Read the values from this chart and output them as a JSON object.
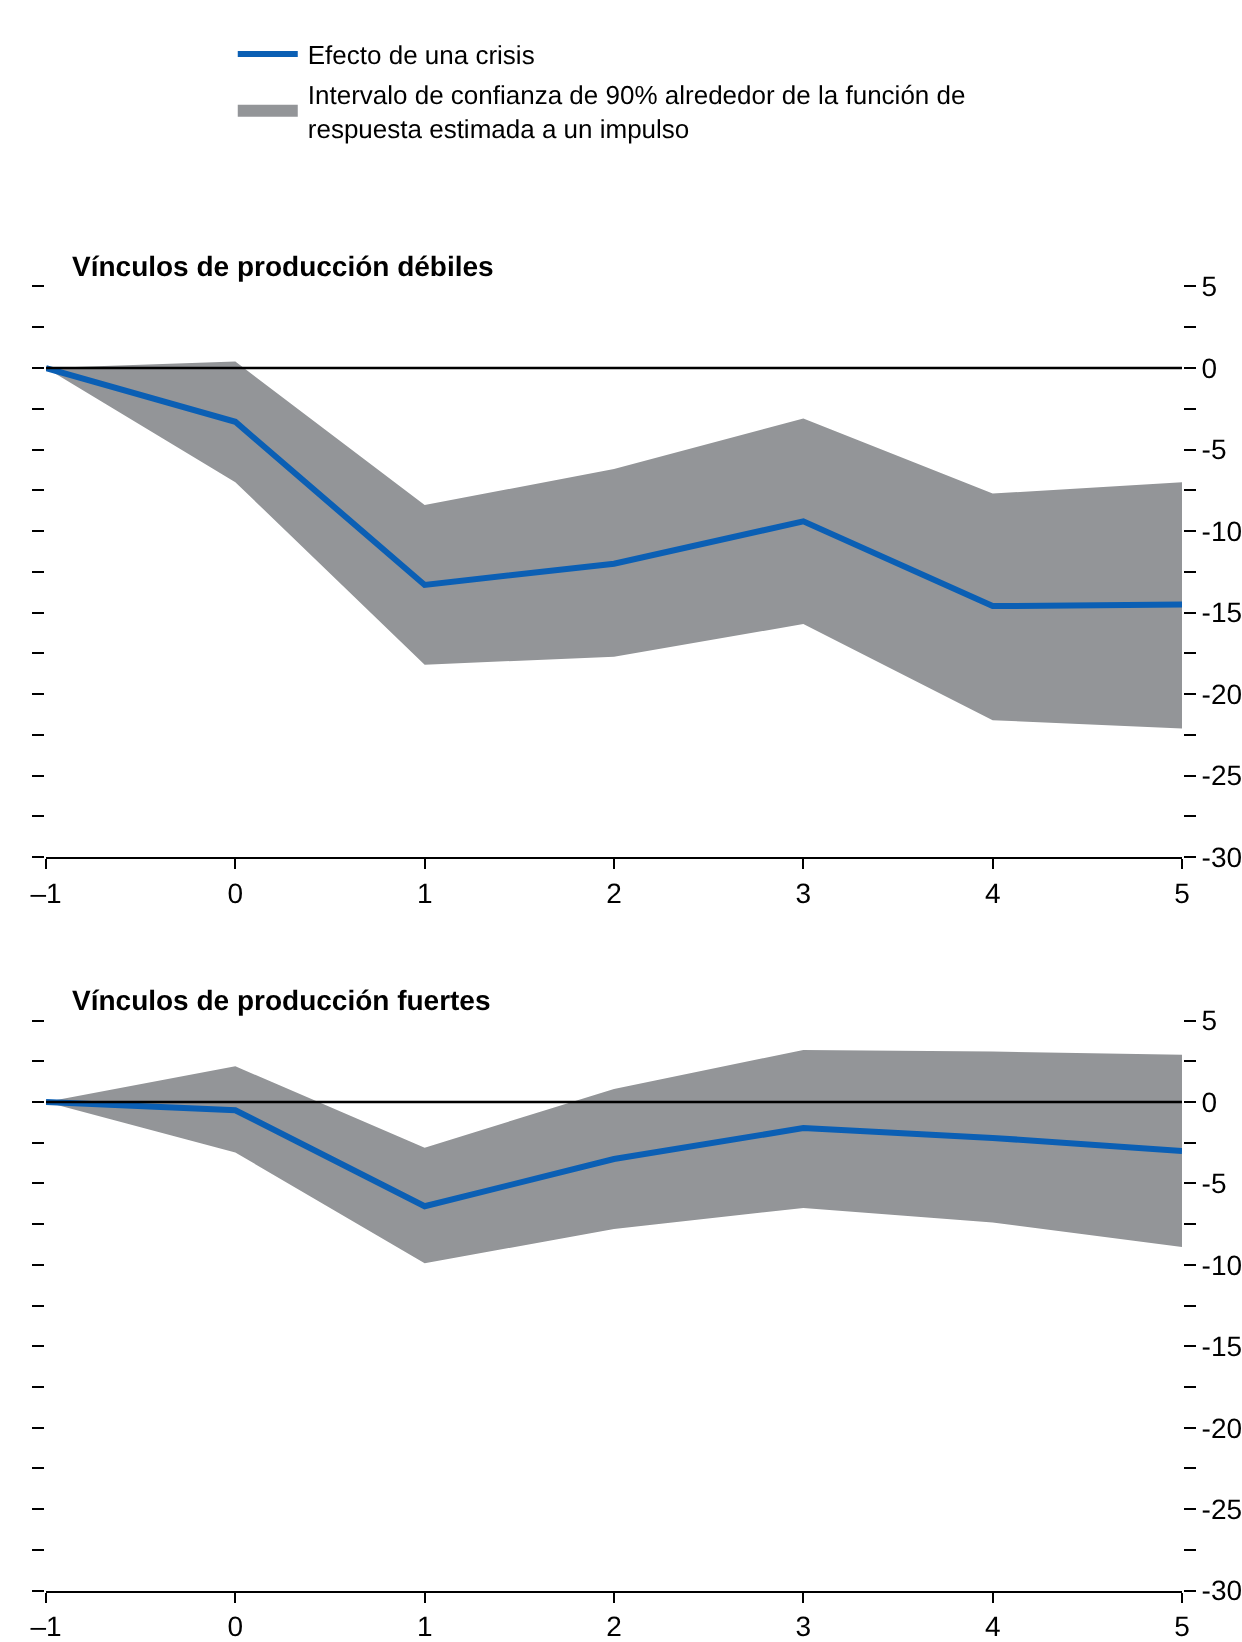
{
  "chart_data": [
    {
      "type": "line",
      "title": "Vínculos de producción débiles",
      "x": [
        -1,
        0,
        1,
        2,
        3,
        4,
        5
      ],
      "series": [
        {
          "name": "Efecto de una crisis",
          "color": "#0b5fb4",
          "values": [
            0,
            -3.3,
            -13.3,
            -12.0,
            -9.4,
            -14.6,
            -14.5
          ],
          "lower": [
            0,
            -7.0,
            -18.2,
            -17.7,
            -15.7,
            -21.6,
            -22.1
          ],
          "upper": [
            0,
            0.4,
            -8.4,
            -6.2,
            -3.1,
            -7.7,
            -7.0
          ]
        }
      ],
      "annotations": [
        "Intervalo de confianza de 90% alrededor de la función de respuesta estimada a un impulso"
      ],
      "xlim": [
        -1,
        5
      ],
      "xticks": [
        {
          "value": -1,
          "label": "–1"
        },
        0,
        1,
        2,
        3,
        4,
        5
      ],
      "ylim": [
        -30,
        5
      ],
      "yticks": [
        5,
        {
          "value": 2.5,
          "label": null
        },
        0,
        {
          "value": -2.5,
          "label": null
        },
        -5,
        {
          "value": -7.5,
          "label": null
        },
        -10,
        {
          "value": -12.5,
          "label": null
        },
        -15,
        {
          "value": -17.5,
          "label": null
        },
        -20,
        {
          "value": -22.5,
          "label": null
        },
        -25,
        {
          "value": -27.5,
          "label": null
        },
        -30
      ],
      "ref_lines": [
        {
          "axis": "y",
          "value": 0,
          "color": "#000000"
        }
      ],
      "legend": "top",
      "marker": "none"
    },
    {
      "type": "line",
      "title": "Vínculos de producción fuertes",
      "x": [
        -1,
        0,
        1,
        2,
        3,
        4,
        5
      ],
      "series": [
        {
          "color": "#0b5fb4",
          "values": [
            0,
            -0.5,
            -6.4,
            -3.5,
            -1.6,
            -2.2,
            -3.0
          ],
          "lower": [
            0,
            -3.1,
            -9.9,
            -7.8,
            -6.5,
            -7.4,
            -8.9
          ],
          "upper": [
            0,
            2.2,
            -2.8,
            0.8,
            3.2,
            3.1,
            2.9
          ]
        }
      ],
      "xlim": [
        -1,
        5
      ],
      "xticks": [
        {
          "value": -1,
          "label": "–1"
        },
        0,
        1,
        2,
        3,
        4,
        5
      ],
      "ylim": [
        -30,
        5
      ],
      "yticks": [
        5,
        {
          "value": 2.5,
          "label": null
        },
        0,
        {
          "value": -2.5,
          "label": null
        },
        -5,
        {
          "value": -7.5,
          "label": null
        },
        -10,
        {
          "value": -12.5,
          "label": null
        },
        -15,
        {
          "value": -17.5,
          "label": null
        },
        -20,
        {
          "value": -22.5,
          "label": null
        },
        -25,
        {
          "value": -27.5,
          "label": null
        },
        -30
      ],
      "ref_lines": [
        {
          "axis": "y",
          "value": 0,
          "color": "#000000"
        }
      ],
      "marker": "none"
    }
  ]
}
